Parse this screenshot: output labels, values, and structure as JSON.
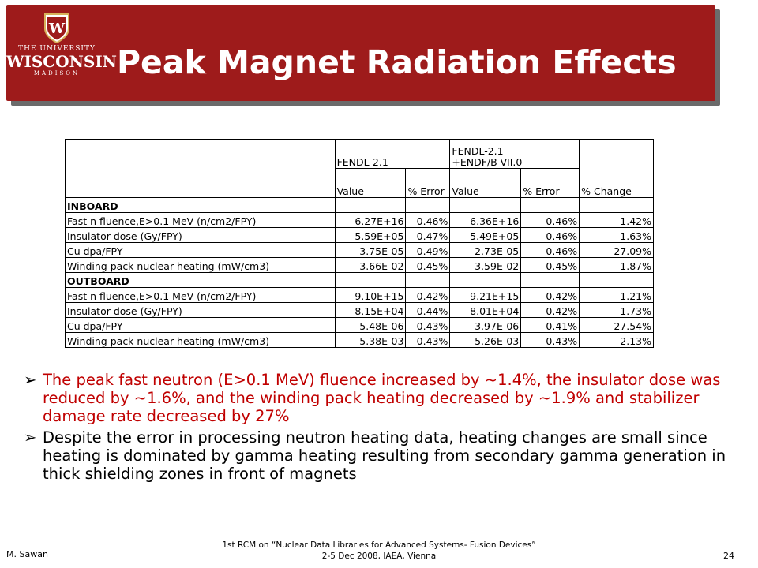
{
  "header": {
    "title": "Peak Magnet Radiation Effects",
    "logo": {
      "line1": "THE UNIVERSITY",
      "line2": "WISCONSIN",
      "line3": "MADISON",
      "crest_letter": "W"
    }
  },
  "table": {
    "group1": "FENDL-2.1",
    "group2": "FENDL-2.1\n+ENDF/B-VII.0",
    "change_header": "% Change",
    "sub_value1": "Value",
    "sub_error1": "% Error",
    "sub_value2": "Value",
    "sub_error2": "% Error",
    "inboard_label": "INBOARD",
    "outboard_label": "OUTBOARD",
    "inboard": [
      {
        "name": "Fast n fluence,E>0.1 MeV (n/cm2/FPY)",
        "v1": "6.27E+16",
        "e1": "0.46%",
        "v2": "6.36E+16",
        "e2": "0.46%",
        "chg": "1.42%"
      },
      {
        "name": "Insulator dose (Gy/FPY)",
        "v1": "5.59E+05",
        "e1": "0.47%",
        "v2": "5.49E+05",
        "e2": "0.46%",
        "chg": "-1.63%"
      },
      {
        "name": "Cu dpa/FPY",
        "v1": "3.75E-05",
        "e1": "0.49%",
        "v2": "2.73E-05",
        "e2": "0.46%",
        "chg": "-27.09%"
      },
      {
        "name": "Winding pack nuclear heating (mW/cm3)",
        "v1": "3.66E-02",
        "e1": "0.45%",
        "v2": "3.59E-02",
        "e2": "0.45%",
        "chg": "-1.87%"
      }
    ],
    "outboard": [
      {
        "name": "Fast n fluence,E>0.1 MeV (n/cm2/FPY)",
        "v1": "9.10E+15",
        "e1": "0.42%",
        "v2": "9.21E+15",
        "e2": "0.42%",
        "chg": "1.21%"
      },
      {
        "name": "Insulator dose (Gy/FPY)",
        "v1": "8.15E+04",
        "e1": "0.44%",
        "v2": "8.01E+04",
        "e2": "0.42%",
        "chg": "-1.73%"
      },
      {
        "name": "Cu dpa/FPY",
        "v1": "5.48E-06",
        "e1": "0.43%",
        "v2": "3.97E-06",
        "e2": "0.41%",
        "chg": "-27.54%"
      },
      {
        "name": "Winding pack nuclear heating (mW/cm3)",
        "v1": "5.38E-03",
        "e1": "0.43%",
        "v2": "5.26E-03",
        "e2": "0.43%",
        "chg": "-2.13%"
      }
    ]
  },
  "bullets": [
    "The peak fast neutron (E>0.1 MeV) fluence increased by ~1.4%, the insulator dose was reduced by ~1.6%, and the winding pack heating decreased by ~1.9% and stabilizer damage rate decreased by 27%",
    "Despite the error in processing neutron heating data, heating changes are small since heating is dominated by gamma heating resulting from secondary gamma generation in thick shielding zones in front of magnets"
  ],
  "footer": {
    "author": "M. Sawan",
    "line1": "1st RCM on “Nuclear Data Libraries for Advanced Systems- Fusion Devices”",
    "line2": "2-5 Dec 2008, IAEA, Vienna",
    "page": "24"
  },
  "colors": {
    "banner": "#9e1b1b",
    "bullet_highlight": "#c00000"
  }
}
